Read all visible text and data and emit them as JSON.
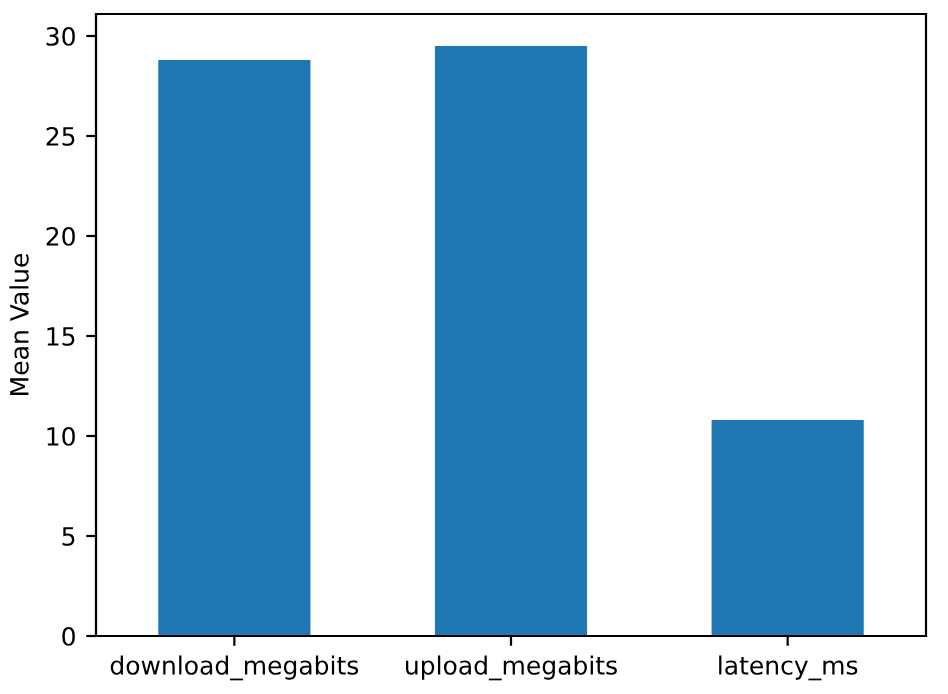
{
  "chart_data": {
    "type": "bar",
    "ylabel": "Mean Value",
    "categories": [
      "download_megabits",
      "upload_megabits",
      "latency_ms"
    ],
    "values": [
      28.8,
      29.5,
      10.8
    ],
    "color": "#1f77b4",
    "ylim": [
      0,
      31.1
    ],
    "yticks": [
      0,
      5,
      10,
      15,
      20,
      25,
      30
    ],
    "grid": false
  }
}
